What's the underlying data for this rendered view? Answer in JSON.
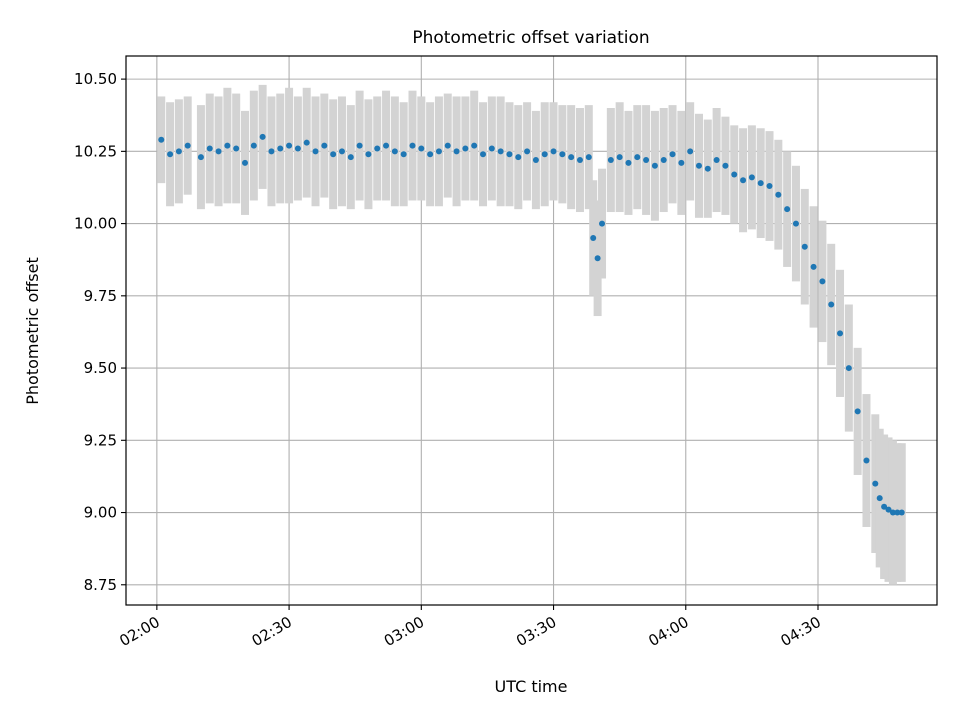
{
  "colors": {
    "marker": "#1f77b4",
    "errorbar": "#d3d3d3",
    "grid": "#b0b0b0",
    "axis": "#000000"
  },
  "chart_data": {
    "type": "scatter",
    "title": "Photometric offset variation",
    "xlabel": "UTC time",
    "ylabel": "Photometric offset",
    "xlim": [
      "01:53",
      "04:57"
    ],
    "ylim": [
      8.68,
      10.58
    ],
    "x_ticks": [
      "02:00",
      "02:30",
      "03:00",
      "03:30",
      "04:00",
      "04:30"
    ],
    "y_ticks": [
      "8.75",
      "9.00",
      "9.25",
      "9.50",
      "9.75",
      "10.00",
      "10.25",
      "10.50"
    ],
    "grid": true,
    "series": [
      {
        "marker": "point",
        "errorbars": true,
        "x": [
          "02:01",
          "02:03",
          "02:05",
          "02:07",
          "02:10",
          "02:12",
          "02:14",
          "02:16",
          "02:18",
          "02:20",
          "02:22",
          "02:24",
          "02:26",
          "02:28",
          "02:30",
          "02:32",
          "02:34",
          "02:36",
          "02:38",
          "02:40",
          "02:42",
          "02:44",
          "02:46",
          "02:48",
          "02:50",
          "02:52",
          "02:54",
          "02:56",
          "02:58",
          "03:00",
          "03:02",
          "03:04",
          "03:06",
          "03:08",
          "03:10",
          "03:12",
          "03:14",
          "03:16",
          "03:18",
          "03:20",
          "03:22",
          "03:24",
          "03:26",
          "03:28",
          "03:30",
          "03:32",
          "03:34",
          "03:36",
          "03:38",
          "03:39",
          "03:40",
          "03:41",
          "03:43",
          "03:45",
          "03:47",
          "03:49",
          "03:51",
          "03:53",
          "03:55",
          "03:57",
          "03:59",
          "04:01",
          "04:03",
          "04:05",
          "04:07",
          "04:09",
          "04:11",
          "04:13",
          "04:15",
          "04:17",
          "04:19",
          "04:21",
          "04:23",
          "04:25",
          "04:27",
          "04:29",
          "04:31",
          "04:33",
          "04:35",
          "04:37",
          "04:39",
          "04:41",
          "04:43",
          "04:44",
          "04:45",
          "04:46",
          "04:47",
          "04:48",
          "04:49"
        ],
        "y": [
          10.29,
          10.24,
          10.25,
          10.27,
          10.23,
          10.26,
          10.25,
          10.27,
          10.26,
          10.21,
          10.27,
          10.3,
          10.25,
          10.26,
          10.27,
          10.26,
          10.28,
          10.25,
          10.27,
          10.24,
          10.25,
          10.23,
          10.27,
          10.24,
          10.26,
          10.27,
          10.25,
          10.24,
          10.27,
          10.26,
          10.24,
          10.25,
          10.27,
          10.25,
          10.26,
          10.27,
          10.24,
          10.26,
          10.25,
          10.24,
          10.23,
          10.25,
          10.22,
          10.24,
          10.25,
          10.24,
          10.23,
          10.22,
          10.23,
          9.95,
          9.88,
          10.0,
          10.22,
          10.23,
          10.21,
          10.23,
          10.22,
          10.2,
          10.22,
          10.24,
          10.21,
          10.25,
          10.2,
          10.19,
          10.22,
          10.2,
          10.17,
          10.15,
          10.16,
          10.14,
          10.13,
          10.1,
          10.05,
          10.0,
          9.92,
          9.85,
          9.8,
          9.72,
          9.62,
          9.5,
          9.35,
          9.18,
          9.1,
          9.05,
          9.02,
          9.01,
          9.0,
          9.0,
          9.0
        ],
        "err": [
          0.15,
          0.18,
          0.18,
          0.17,
          0.18,
          0.19,
          0.19,
          0.2,
          0.19,
          0.18,
          0.19,
          0.18,
          0.19,
          0.19,
          0.2,
          0.18,
          0.19,
          0.19,
          0.18,
          0.19,
          0.19,
          0.18,
          0.19,
          0.19,
          0.18,
          0.19,
          0.19,
          0.18,
          0.19,
          0.18,
          0.18,
          0.19,
          0.18,
          0.19,
          0.18,
          0.19,
          0.18,
          0.18,
          0.19,
          0.18,
          0.18,
          0.17,
          0.17,
          0.18,
          0.17,
          0.17,
          0.18,
          0.18,
          0.18,
          0.2,
          0.2,
          0.19,
          0.18,
          0.19,
          0.18,
          0.18,
          0.19,
          0.19,
          0.18,
          0.17,
          0.18,
          0.17,
          0.18,
          0.17,
          0.18,
          0.17,
          0.17,
          0.18,
          0.18,
          0.19,
          0.19,
          0.19,
          0.2,
          0.2,
          0.2,
          0.21,
          0.21,
          0.21,
          0.22,
          0.22,
          0.22,
          0.23,
          0.24,
          0.24,
          0.25,
          0.25,
          0.25,
          0.24,
          0.24
        ]
      }
    ]
  }
}
